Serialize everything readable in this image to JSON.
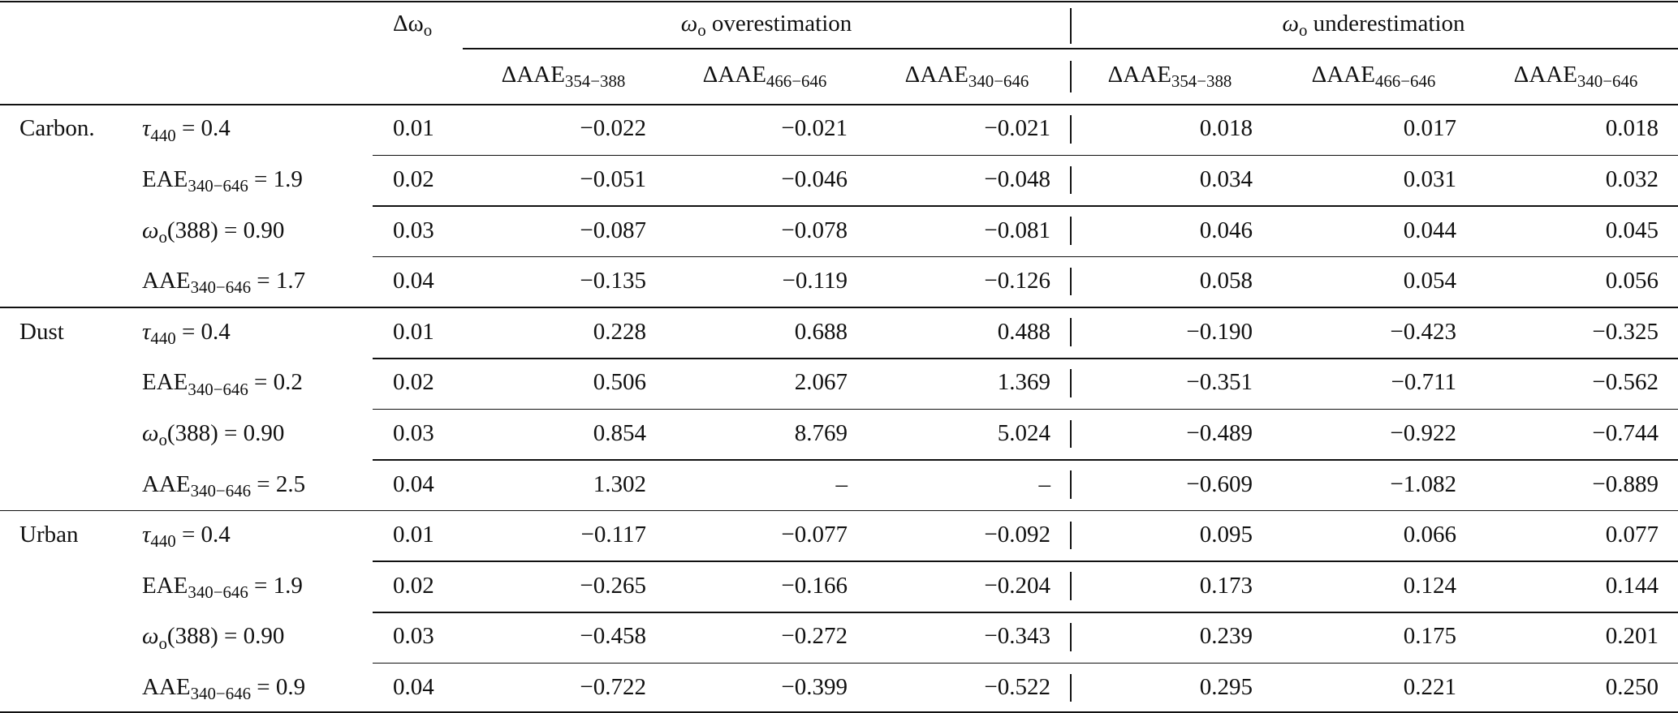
{
  "table": {
    "header": {
      "delta": {
        "base": "Δω",
        "sub": "o"
      },
      "groups": [
        {
          "base": "ω",
          "sub": "o",
          "rest": " overestimation"
        },
        {
          "base": "ω",
          "sub": "o",
          "rest": " underestimation"
        }
      ],
      "columns": [
        {
          "base": "ΔAAE",
          "sub": "354−388"
        },
        {
          "base": "ΔAAE",
          "sub": "466−646"
        },
        {
          "base": "ΔAAE",
          "sub": "340−646"
        },
        {
          "base": "ΔAAE",
          "sub": "354−388"
        },
        {
          "base": "ΔAAE",
          "sub": "466−646"
        },
        {
          "base": "ΔAAE",
          "sub": "340−646"
        }
      ]
    },
    "groups": [
      {
        "name": "Carbon.",
        "rows": [
          {
            "param": {
              "base": "τ",
              "sub": "440",
              "rest": " = 0.4"
            },
            "delta": "0.01",
            "values": [
              "−0.022",
              "−0.021",
              "−0.021",
              "0.018",
              "0.017",
              "0.018"
            ]
          },
          {
            "param": {
              "base": "EAE",
              "sub": "340−646",
              "rest": " = 1.9"
            },
            "delta": "0.02",
            "values": [
              "−0.051",
              "−0.046",
              "−0.048",
              "0.034",
              "0.031",
              "0.032"
            ]
          },
          {
            "param": {
              "base": "ω",
              "sub": "o",
              "rest": "(388) = 0.90"
            },
            "delta": "0.03",
            "values": [
              "−0.087",
              "−0.078",
              "−0.081",
              "0.046",
              "0.044",
              "0.045"
            ]
          },
          {
            "param": {
              "base": "AAE",
              "sub": "340−646",
              "rest": " = 1.7"
            },
            "delta": "0.04",
            "values": [
              "−0.135",
              "−0.119",
              "−0.126",
              "0.058",
              "0.054",
              "0.056"
            ]
          }
        ]
      },
      {
        "name": "Dust",
        "rows": [
          {
            "param": {
              "base": "τ",
              "sub": "440",
              "rest": " = 0.4"
            },
            "delta": "0.01",
            "values": [
              "0.228",
              "0.688",
              "0.488",
              "−0.190",
              "−0.423",
              "−0.325"
            ]
          },
          {
            "param": {
              "base": "EAE",
              "sub": "340−646",
              "rest": " = 0.2"
            },
            "delta": "0.02",
            "values": [
              "0.506",
              "2.067",
              "1.369",
              "−0.351",
              "−0.711",
              "−0.562"
            ]
          },
          {
            "param": {
              "base": "ω",
              "sub": "o",
              "rest": "(388) = 0.90"
            },
            "delta": "0.03",
            "values": [
              "0.854",
              "8.769",
              "5.024",
              "−0.489",
              "−0.922",
              "−0.744"
            ]
          },
          {
            "param": {
              "base": "AAE",
              "sub": "340−646",
              "rest": " = 2.5"
            },
            "delta": "0.04",
            "values": [
              "1.302",
              "–",
              "–",
              "−0.609",
              "−1.082",
              "−0.889"
            ]
          }
        ]
      },
      {
        "name": "Urban",
        "rows": [
          {
            "param": {
              "base": "τ",
              "sub": "440",
              "rest": " = 0.4"
            },
            "delta": "0.01",
            "values": [
              "−0.117",
              "−0.077",
              "−0.092",
              "0.095",
              "0.066",
              "0.077"
            ]
          },
          {
            "param": {
              "base": "EAE",
              "sub": "340−646",
              "rest": " = 1.9"
            },
            "delta": "0.02",
            "values": [
              "−0.265",
              "−0.166",
              "−0.204",
              "0.173",
              "0.124",
              "0.144"
            ]
          },
          {
            "param": {
              "base": "ω",
              "sub": "o",
              "rest": "(388) = 0.90"
            },
            "delta": "0.03",
            "values": [
              "−0.458",
              "−0.272",
              "−0.343",
              "0.239",
              "0.175",
              "0.201"
            ]
          },
          {
            "param": {
              "base": "AAE",
              "sub": "340−646",
              "rest": " = 0.9"
            },
            "delta": "0.04",
            "values": [
              "−0.722",
              "−0.399",
              "−0.522",
              "0.295",
              "0.221",
              "0.250"
            ]
          }
        ]
      }
    ]
  }
}
